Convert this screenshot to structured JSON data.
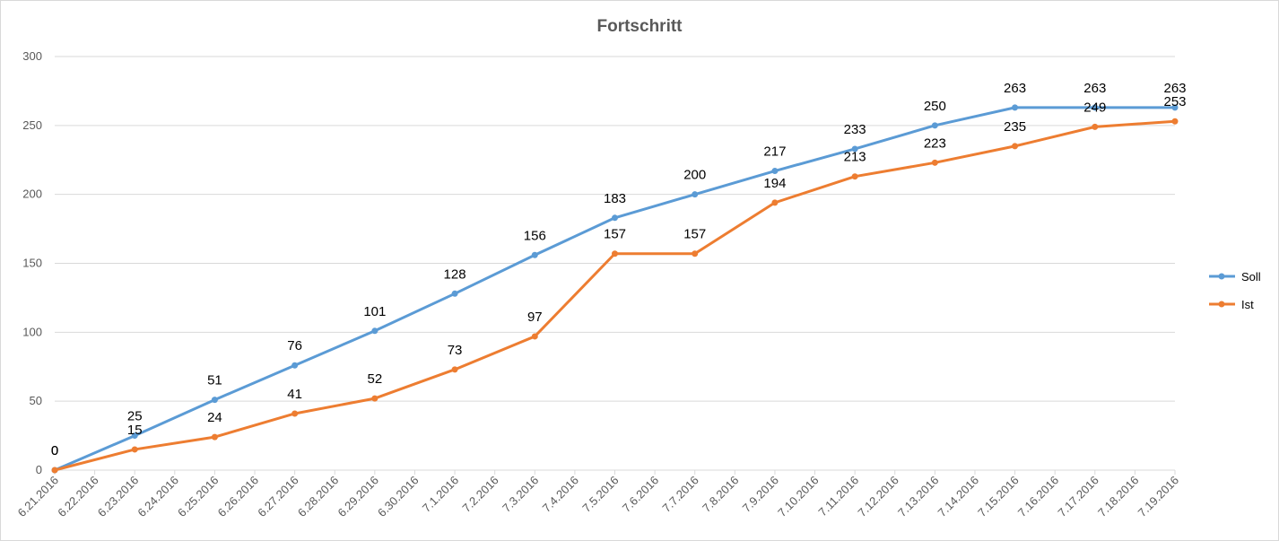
{
  "chart_data": {
    "type": "line",
    "title": "Fortschritt",
    "xlabel": "",
    "ylabel": "",
    "ylim": [
      0,
      300
    ],
    "yticks": [
      0,
      50,
      100,
      150,
      200,
      250,
      300
    ],
    "grid": "horizontal",
    "legend_position": "right",
    "categories": [
      "6.21.2016",
      "6.22.2016",
      "6.23.2016",
      "6.24.2016",
      "6.25.2016",
      "6.26.2016",
      "6.27.2016",
      "6.28.2016",
      "6.29.2016",
      "6.30.2016",
      "7.1.2016",
      "7.2.2016",
      "7.3.2016",
      "7.4.2016",
      "7.5.2016",
      "7.6.2016",
      "7.7.2016",
      "7.8.2016",
      "7.9.2016",
      "7.10.2016",
      "7.11.2016",
      "7.12.2016",
      "7.13.2016",
      "7.14.2016",
      "7.15.2016",
      "7.16.2016",
      "7.17.2016",
      "7.18.2016",
      "7.19.2016"
    ],
    "series": [
      {
        "name": "Soll",
        "color": "#5b9bd5",
        "points": [
          {
            "x": "6.21.2016",
            "y": 0
          },
          {
            "x": "6.23.2016",
            "y": 25
          },
          {
            "x": "6.25.2016",
            "y": 51
          },
          {
            "x": "6.27.2016",
            "y": 76
          },
          {
            "x": "6.29.2016",
            "y": 101
          },
          {
            "x": "7.1.2016",
            "y": 128
          },
          {
            "x": "7.3.2016",
            "y": 156
          },
          {
            "x": "7.5.2016",
            "y": 183
          },
          {
            "x": "7.7.2016",
            "y": 200
          },
          {
            "x": "7.9.2016",
            "y": 217
          },
          {
            "x": "7.11.2016",
            "y": 233
          },
          {
            "x": "7.13.2016",
            "y": 250
          },
          {
            "x": "7.15.2016",
            "y": 263
          },
          {
            "x": "7.17.2016",
            "y": 263
          },
          {
            "x": "7.19.2016",
            "y": 263
          }
        ]
      },
      {
        "name": "Ist",
        "color": "#ed7d31",
        "points": [
          {
            "x": "6.21.2016",
            "y": 0
          },
          {
            "x": "6.23.2016",
            "y": 15
          },
          {
            "x": "6.25.2016",
            "y": 24
          },
          {
            "x": "6.27.2016",
            "y": 41
          },
          {
            "x": "6.29.2016",
            "y": 52
          },
          {
            "x": "7.1.2016",
            "y": 73
          },
          {
            "x": "7.3.2016",
            "y": 97
          },
          {
            "x": "7.5.2016",
            "y": 157
          },
          {
            "x": "7.7.2016",
            "y": 157
          },
          {
            "x": "7.9.2016",
            "y": 194
          },
          {
            "x": "7.11.2016",
            "y": 213
          },
          {
            "x": "7.13.2016",
            "y": 223
          },
          {
            "x": "7.15.2016",
            "y": 235
          },
          {
            "x": "7.17.2016",
            "y": 249
          },
          {
            "x": "7.19.2016",
            "y": 253
          }
        ]
      }
    ]
  }
}
